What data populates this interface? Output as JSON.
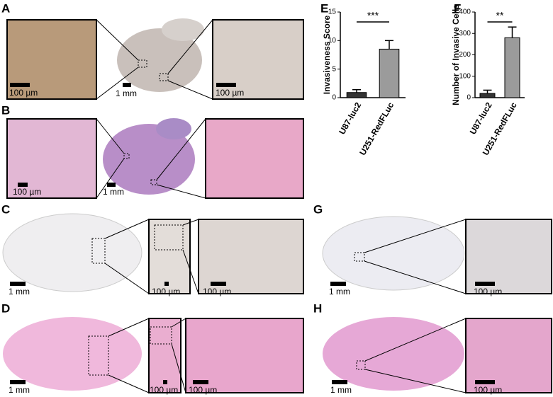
{
  "panels": [
    "A",
    "B",
    "C",
    "D",
    "E",
    "F",
    "G",
    "H"
  ],
  "scale_bars": [
    "100 µm",
    "1 mm",
    "100 µm",
    "100 µm",
    "1 mm",
    "1 mm",
    "100 µm",
    "100 µm",
    "1 mm",
    "100 µm",
    "100 µm",
    "1 mm",
    "100 µm",
    "1 mm",
    "100 µm"
  ],
  "chart_data": [
    {
      "type": "bar",
      "ylabel": "Invasiveness Score",
      "categories": [
        "U87-luc2",
        "U251-RedFLuc"
      ],
      "values": [
        0.9,
        8.5
      ],
      "errors": [
        0.5,
        1.5
      ],
      "color": "#9b9b9b",
      "ylim": [
        0,
        15
      ],
      "yticks": [
        0,
        5,
        10,
        15
      ],
      "annotation": "***"
    },
    {
      "type": "bar",
      "ylabel": "Number of Invasive Cells",
      "categories": [
        "U87-luc2",
        "U251-RedFLuc"
      ],
      "values": [
        20,
        280
      ],
      "errors": [
        15,
        50
      ],
      "color": "#9b9b9b",
      "ylim": [
        0,
        400
      ],
      "yticks": [
        0,
        100,
        200,
        300,
        400
      ],
      "annotation": "**"
    }
  ]
}
